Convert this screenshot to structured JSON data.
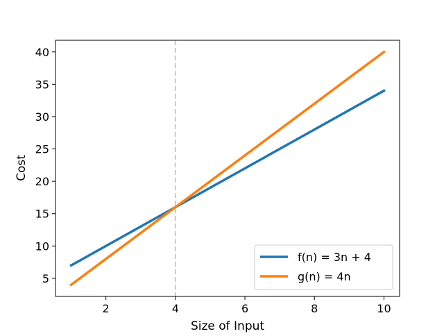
{
  "chart_data": {
    "type": "line",
    "title": "",
    "xlabel": "Size of Input",
    "ylabel": "Cost",
    "xlim": [
      0.55,
      10.45
    ],
    "ylim": [
      2.2,
      41.8
    ],
    "xticks": [
      2,
      4,
      6,
      8,
      10
    ],
    "yticks": [
      5,
      10,
      15,
      20,
      25,
      30,
      35,
      40
    ],
    "grid": false,
    "legend_position": "lower right",
    "series": [
      {
        "name": "f(n) = 3n + 4",
        "color": "#1f77b4",
        "x": [
          1,
          10
        ],
        "y": [
          7,
          34
        ]
      },
      {
        "name": "g(n) = 4n",
        "color": "#ff7f0e",
        "x": [
          1,
          10
        ],
        "y": [
          4,
          40
        ]
      }
    ],
    "annotations": [
      {
        "type": "vertical-dashed-line",
        "x": 4,
        "color": "#cccccc"
      }
    ]
  }
}
